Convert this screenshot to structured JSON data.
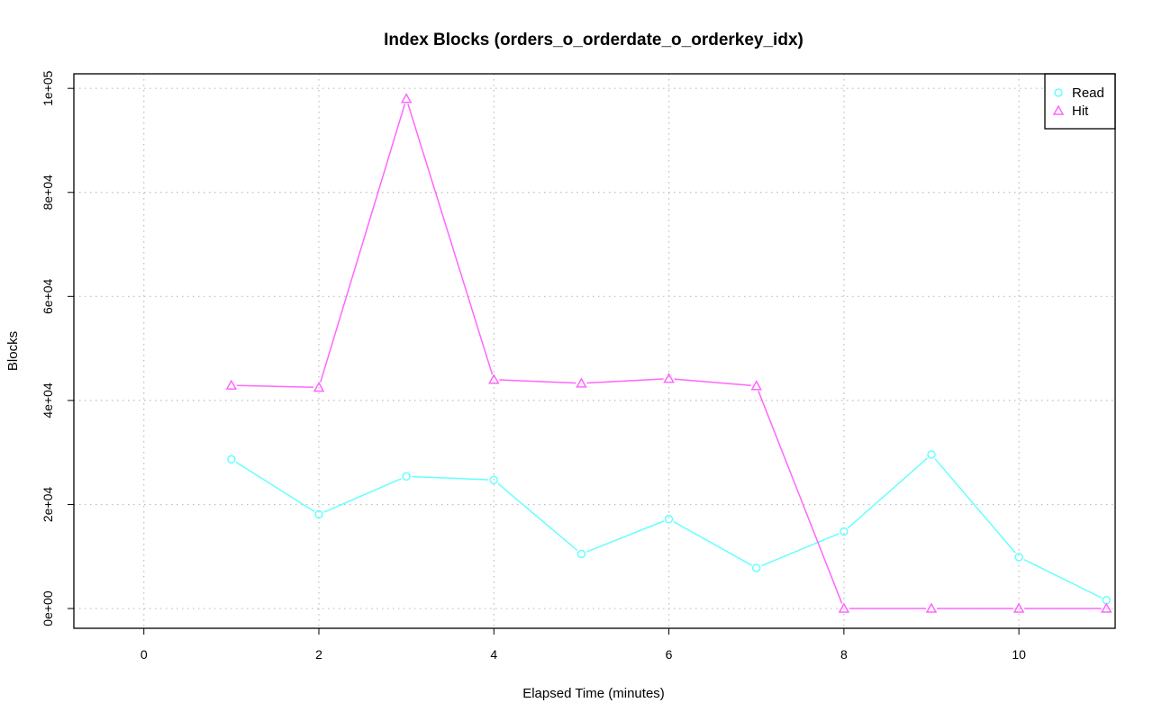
{
  "chart_data": {
    "type": "line",
    "title": "Index Blocks (orders_o_orderdate_o_orderkey_idx)",
    "xlabel": "Elapsed Time (minutes)",
    "ylabel": "Blocks",
    "xlim": [
      -0.8,
      11.1
    ],
    "ylim": [
      -3800,
      102800
    ],
    "x_ticks": [
      0,
      2,
      4,
      6,
      8,
      10
    ],
    "x_tick_labels": [
      "0",
      "2",
      "4",
      "6",
      "8",
      "10"
    ],
    "y_ticks": [
      0,
      20000,
      40000,
      60000,
      80000,
      100000
    ],
    "y_tick_labels": [
      "0e+00",
      "2e+04",
      "4e+04",
      "6e+04",
      "8e+04",
      "1e+05"
    ],
    "grid": true,
    "legend_position": "top-right",
    "series": [
      {
        "name": "Read",
        "color": "#66ffff",
        "marker": "circle",
        "x": [
          1,
          2,
          3,
          4,
          5,
          6,
          7,
          8,
          9,
          10,
          11
        ],
        "values": [
          28700,
          18100,
          25400,
          24700,
          10500,
          17200,
          7800,
          14800,
          29600,
          9900,
          1600
        ]
      },
      {
        "name": "Hit",
        "color": "#ff66ff",
        "marker": "triangle",
        "x": [
          1,
          2,
          3,
          4,
          5,
          6,
          7,
          8,
          9,
          10,
          11
        ],
        "values": [
          42900,
          42500,
          98000,
          44000,
          43300,
          44200,
          42800,
          0,
          0,
          0,
          0
        ]
      }
    ]
  }
}
